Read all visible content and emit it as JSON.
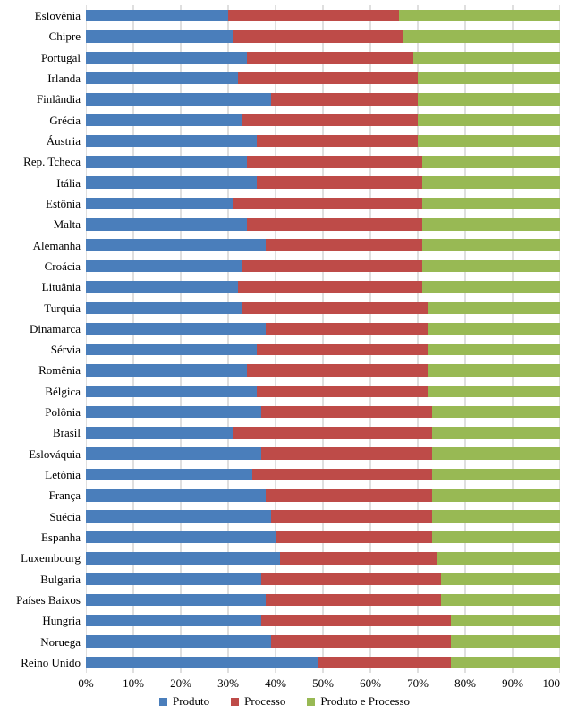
{
  "chart": {
    "type": "stacked-bar-horizontal",
    "background_color": "#ffffff",
    "grid_color": "#bfbfbf",
    "bar_gap_ratio": 0.42,
    "label_fontsize": 13,
    "tick_fontsize": 13,
    "legend_fontsize": 13,
    "xaxis": {
      "min": 0,
      "max": 100,
      "step": 10,
      "labels": [
        "0%",
        "10%",
        "20%",
        "30%",
        "40%",
        "50%",
        "60%",
        "70%",
        "80%",
        "90%",
        "100"
      ]
    },
    "series": [
      {
        "key": "produto",
        "label": "Produto",
        "color": "#4a7ebb"
      },
      {
        "key": "processo",
        "label": "Processo",
        "color": "#be4b48"
      },
      {
        "key": "produto_processo",
        "label": "Produto e Processo",
        "color": "#98b954"
      }
    ],
    "legend_bullet": "■",
    "items": [
      {
        "label": "Eslovênia",
        "produto": 30,
        "processo": 36,
        "produto_processo": 34
      },
      {
        "label": "Chipre",
        "produto": 31,
        "processo": 36,
        "produto_processo": 33
      },
      {
        "label": "Portugal",
        "produto": 34,
        "processo": 35,
        "produto_processo": 31
      },
      {
        "label": "Irlanda",
        "produto": 32,
        "processo": 38,
        "produto_processo": 30
      },
      {
        "label": "Finlândia",
        "produto": 39,
        "processo": 31,
        "produto_processo": 30
      },
      {
        "label": "Grécia",
        "produto": 33,
        "processo": 37,
        "produto_processo": 30
      },
      {
        "label": "Áustria",
        "produto": 36,
        "processo": 34,
        "produto_processo": 30
      },
      {
        "label": "Rep. Tcheca",
        "produto": 34,
        "processo": 37,
        "produto_processo": 29
      },
      {
        "label": "Itália",
        "produto": 36,
        "processo": 35,
        "produto_processo": 29
      },
      {
        "label": "Estônia",
        "produto": 31,
        "processo": 40,
        "produto_processo": 29
      },
      {
        "label": "Malta",
        "produto": 34,
        "processo": 37,
        "produto_processo": 29
      },
      {
        "label": "Alemanha",
        "produto": 38,
        "processo": 33,
        "produto_processo": 29
      },
      {
        "label": "Croácia",
        "produto": 33,
        "processo": 38,
        "produto_processo": 29
      },
      {
        "label": "Lituânia",
        "produto": 32,
        "processo": 39,
        "produto_processo": 29
      },
      {
        "label": "Turquia",
        "produto": 33,
        "processo": 39,
        "produto_processo": 28
      },
      {
        "label": "Dinamarca",
        "produto": 38,
        "processo": 34,
        "produto_processo": 28
      },
      {
        "label": "Sérvia",
        "produto": 36,
        "processo": 36,
        "produto_processo": 28
      },
      {
        "label": "Romênia",
        "produto": 34,
        "processo": 38,
        "produto_processo": 28
      },
      {
        "label": "Bélgica",
        "produto": 36,
        "processo": 36,
        "produto_processo": 28
      },
      {
        "label": "Polônia",
        "produto": 37,
        "processo": 36,
        "produto_processo": 27
      },
      {
        "label": "Brasil",
        "produto": 31,
        "processo": 42,
        "produto_processo": 27
      },
      {
        "label": "Eslováquia",
        "produto": 37,
        "processo": 36,
        "produto_processo": 27
      },
      {
        "label": "Letônia",
        "produto": 35,
        "processo": 38,
        "produto_processo": 27
      },
      {
        "label": "França",
        "produto": 38,
        "processo": 35,
        "produto_processo": 27
      },
      {
        "label": "Suécia",
        "produto": 39,
        "processo": 34,
        "produto_processo": 27
      },
      {
        "label": "Espanha",
        "produto": 40,
        "processo": 33,
        "produto_processo": 27
      },
      {
        "label": "Luxembourg",
        "produto": 41,
        "processo": 33,
        "produto_processo": 26
      },
      {
        "label": "Bulgaria",
        "produto": 37,
        "processo": 38,
        "produto_processo": 25
      },
      {
        "label": "Países Baixos",
        "produto": 38,
        "processo": 37,
        "produto_processo": 25
      },
      {
        "label": "Hungria",
        "produto": 37,
        "processo": 40,
        "produto_processo": 23
      },
      {
        "label": "Noruega",
        "produto": 39,
        "processo": 38,
        "produto_processo": 23
      },
      {
        "label": "Reino Unido",
        "produto": 49,
        "processo": 28,
        "produto_processo": 23
      }
    ]
  }
}
